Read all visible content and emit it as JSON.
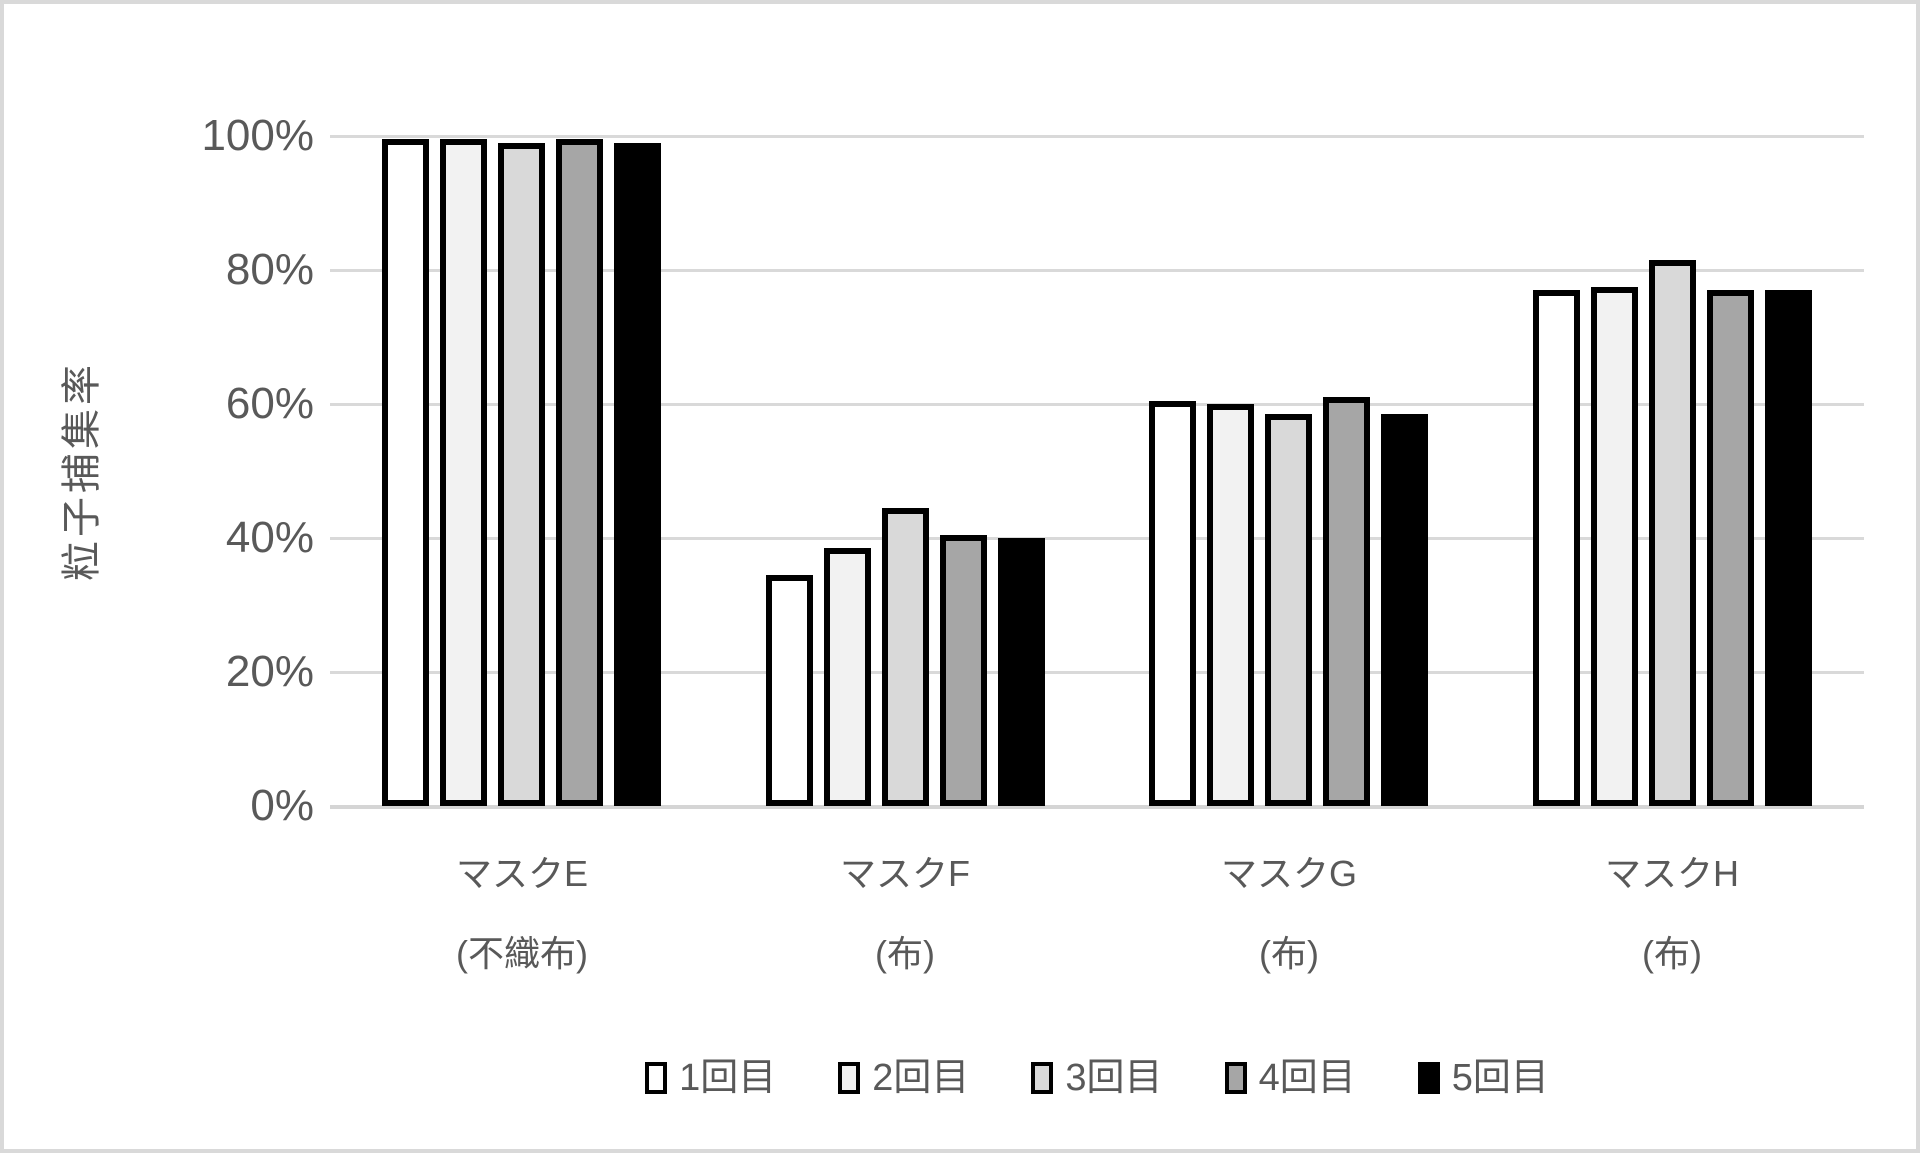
{
  "chart_data": {
    "type": "bar",
    "title": "",
    "ylabel": "粒子捕集率",
    "xlabel": "",
    "ylim": [
      0,
      100
    ],
    "grid": true,
    "legend_position": "bottom",
    "y_tick_labels": [
      "100%",
      "80%",
      "60%",
      "40%",
      "20%",
      "0%"
    ],
    "categories": [
      {
        "line1": "マスクE",
        "line2": "(不織布)"
      },
      {
        "line1": "マスクF",
        "line2": "(布)"
      },
      {
        "line1": "マスクG",
        "line2": "(布)"
      },
      {
        "line1": "マスクH",
        "line2": "(布)"
      }
    ],
    "series": [
      {
        "name": "1回目",
        "color": "#ffffff",
        "values": [
          99.5,
          34.5,
          60.5,
          77.0
        ]
      },
      {
        "name": "2回目",
        "color": "#f2f2f2",
        "values": [
          99.5,
          38.5,
          60.0,
          77.5
        ]
      },
      {
        "name": "3回目",
        "color": "#d9d9d9",
        "values": [
          99.0,
          44.5,
          58.5,
          81.5
        ]
      },
      {
        "name": "4回目",
        "color": "#a6a6a6",
        "values": [
          99.5,
          40.5,
          61.0,
          77.0
        ]
      },
      {
        "name": "5回目",
        "color": "#000000",
        "values": [
          99.0,
          40.0,
          58.5,
          77.0
        ]
      }
    ],
    "colors": {
      "bar_border": "#000000",
      "gridline": "#d9d9d9",
      "text": "#595959",
      "frame_border": "#d9d9d9",
      "background": "#ffffff"
    }
  }
}
